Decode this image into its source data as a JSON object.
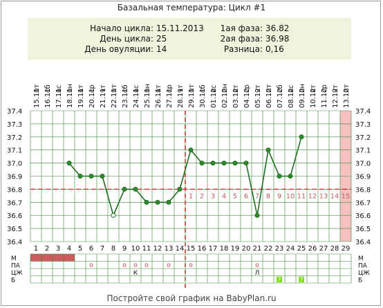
{
  "title": "Базальная температура: Цикл #1",
  "info": {
    "cycle_start_label": "Начало цикла:",
    "cycle_start_value": "15.11.2013",
    "cycle_day_label": "День цикла:",
    "cycle_day_value": "25",
    "ovulation_day_label": "День овуляции:",
    "ovulation_day_value": "14",
    "phase1_label": "1ая фаза:",
    "phase1_value": "36.82",
    "phase2_label": "2ая фаза:",
    "phase2_value": "36.98",
    "diff_label": "Разница:",
    "diff_value": "0,16"
  },
  "footer": "Постройте свой график на BabyPlan.ru",
  "colors": {
    "line": "#1f6e1f",
    "point_fill": "#2e8b2e",
    "coverline": "#cc2222",
    "ovulation_line": "#cc2222",
    "future_day_band": "#f4c0c0",
    "menstruation": "#cc5c5c",
    "cm_green": "#88dd22",
    "grid": "#3a8a3a",
    "info_bg": "#eef5dc"
  },
  "chart_data": {
    "type": "line",
    "title": "Базальная температура: Цикл #1",
    "days": [
      1,
      2,
      3,
      4,
      5,
      6,
      7,
      8,
      9,
      10,
      11,
      12,
      13,
      14,
      15,
      16,
      17,
      18,
      19,
      20,
      21,
      22,
      23,
      24,
      25,
      26,
      27,
      28,
      29
    ],
    "weekdays": [
      "пт",
      "сб",
      "вс",
      "пн",
      "вт",
      "ср",
      "чт",
      "пт",
      "сб",
      "вс",
      "пн",
      "вт",
      "ср",
      "чт",
      "пт",
      "сб",
      "вс",
      "пн",
      "вт",
      "ср",
      "чт",
      "пт",
      "сб",
      "вс",
      "пн",
      "вт",
      "ср",
      "чт",
      "пт"
    ],
    "dates": [
      "15.11",
      "16.11",
      "17.11",
      "18.11",
      "19.11",
      "20.11",
      "21.11",
      "22.11",
      "23.11",
      "24.11",
      "25.11",
      "26.11",
      "27.11",
      "28.11",
      "29.11",
      "30.11",
      "01.12",
      "02.12",
      "03.12",
      "04.12",
      "05.12",
      "06.12",
      "07.12",
      "08.12",
      "09.12",
      "10.12",
      "11.12",
      "12.12",
      "13.12"
    ],
    "series": [
      {
        "values": [
          null,
          null,
          null,
          37.0,
          36.9,
          36.9,
          36.9,
          36.6,
          36.8,
          36.8,
          36.7,
          36.7,
          36.7,
          36.8,
          37.1,
          37.0,
          37.0,
          37.0,
          37.0,
          37.0,
          36.6,
          37.1,
          36.9,
          36.9,
          37.2,
          null,
          null,
          null,
          null
        ],
        "hollow_days": [
          8
        ]
      }
    ],
    "y_ticks": [
      "36.4",
      "36.5",
      "36.6",
      "36.7",
      "36.8",
      "36.9",
      "37.0",
      "37.1",
      "37.2",
      "37.3",
      "37.4"
    ],
    "ylim": [
      36.4,
      37.4
    ],
    "coverline": 36.8,
    "ovulation_day": 14,
    "luteal_day_numbers": [
      "1",
      "2",
      "3",
      "4",
      "5",
      "6",
      "7",
      "8",
      "9",
      "10",
      "11",
      "12",
      "13",
      "14",
      "15"
    ],
    "highlight_day": 29,
    "grid": true,
    "rows": [
      {
        "label": "М",
        "marks": {
          "1": "fill",
          "2": "fill",
          "3": "fill",
          "4": "fill"
        }
      },
      {
        "label": "ПА",
        "marks": {
          "6": "о",
          "9": "о",
          "10": "о",
          "11": "о",
          "13": "о",
          "15": "о",
          "21": "о"
        }
      },
      {
        "label": "ЦЖ",
        "marks": {
          "10": "К",
          "21": "Л"
        }
      },
      {
        "label": "Б",
        "marks": {
          "23": "?",
          "25": "?"
        }
      }
    ]
  }
}
